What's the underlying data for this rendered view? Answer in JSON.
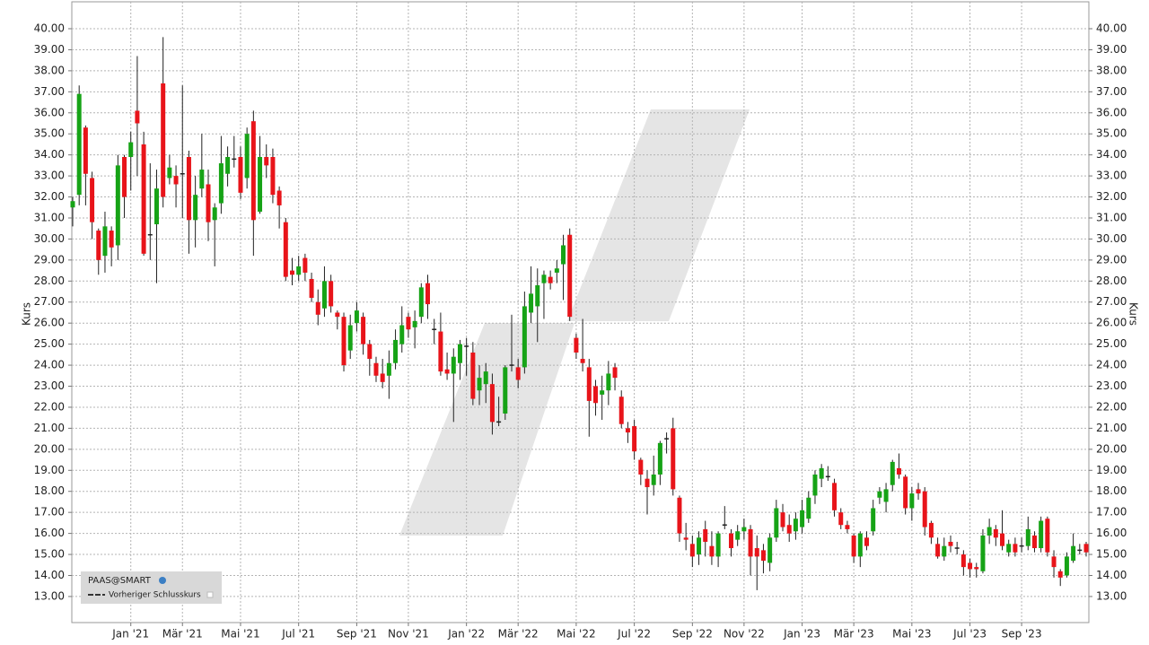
{
  "chart_data": {
    "type": "candlestick",
    "ylabel": "Kurs",
    "grid": true,
    "legend": "lower left",
    "prev_close_label": "Vorheriger Schlusskurs",
    "ylim": [
      11.76,
      41.28
    ],
    "yticks": [
      {
        "value": 13,
        "label": "13.00"
      },
      {
        "value": 14,
        "label": "14.00"
      },
      {
        "value": 15,
        "label": "15.00"
      },
      {
        "value": 16,
        "label": "16.00"
      },
      {
        "value": 17,
        "label": "17.00"
      },
      {
        "value": 18,
        "label": "18.00"
      },
      {
        "value": 19,
        "label": "19.00"
      },
      {
        "value": 20,
        "label": "20.00"
      },
      {
        "value": 21,
        "label": "21.00"
      },
      {
        "value": 22,
        "label": "22.00"
      },
      {
        "value": 23,
        "label": "23.00"
      },
      {
        "value": 24,
        "label": "24.00"
      },
      {
        "value": 25,
        "label": "25.00"
      },
      {
        "value": 26,
        "label": "26.00"
      },
      {
        "value": 27,
        "label": "27.00"
      },
      {
        "value": 28,
        "label": "28.00"
      },
      {
        "value": 29,
        "label": "29.00"
      },
      {
        "value": 30,
        "label": "30.00"
      },
      {
        "value": 31,
        "label": "31.00"
      },
      {
        "value": 32,
        "label": "32.00"
      },
      {
        "value": 33,
        "label": "33.00"
      },
      {
        "value": 34,
        "label": "34.00"
      },
      {
        "value": 35,
        "label": "35.00"
      },
      {
        "value": 36,
        "label": "36.00"
      },
      {
        "value": 37,
        "label": "37.00"
      },
      {
        "value": 38,
        "label": "38.00"
      },
      {
        "value": 39,
        "label": "39.00"
      },
      {
        "value": 40,
        "label": "40.00"
      }
    ],
    "categories": [
      null,
      null,
      null,
      null,
      null,
      null,
      null,
      null,
      null,
      "Jan '21",
      null,
      null,
      null,
      null,
      null,
      null,
      null,
      "Mär '21",
      null,
      null,
      null,
      null,
      null,
      null,
      null,
      null,
      "Mai '21",
      null,
      null,
      null,
      null,
      null,
      null,
      null,
      null,
      "Jul '21",
      null,
      null,
      null,
      null,
      null,
      null,
      null,
      null,
      "Sep '21",
      null,
      null,
      null,
      null,
      null,
      null,
      null,
      "Nov '21",
      null,
      null,
      null,
      null,
      null,
      null,
      null,
      null,
      "Jan '22",
      null,
      null,
      null,
      null,
      null,
      null,
      null,
      "Mär '22",
      null,
      null,
      null,
      null,
      null,
      null,
      null,
      null,
      "Mai '22",
      null,
      null,
      null,
      null,
      null,
      null,
      null,
      null,
      "Jul '22",
      null,
      null,
      null,
      null,
      null,
      null,
      null,
      null,
      "Sep '22",
      null,
      null,
      null,
      null,
      null,
      null,
      null,
      "Nov '22",
      null,
      null,
      null,
      null,
      null,
      null,
      null,
      null,
      "Jan '23",
      null,
      null,
      null,
      null,
      null,
      null,
      null,
      "Mär '23",
      null,
      null,
      null,
      null,
      null,
      null,
      null,
      null,
      "Mai '23",
      null,
      null,
      null,
      null,
      null,
      null,
      null,
      null,
      "Jul '23",
      null,
      null,
      null,
      null,
      null,
      null,
      null,
      "Sep '23",
      null,
      null,
      null,
      null,
      null,
      null,
      null,
      null,
      null,
      null
    ],
    "series": [
      {
        "name": "PAAS@SMART",
        "up_color": "#16a316",
        "down_color": "#e8141a",
        "open": [
          31.5,
          32.1,
          35.3,
          32.9,
          30.4,
          29.2,
          30.4,
          29.7,
          33.9,
          33.9,
          36.1,
          34.5,
          30.2,
          30.7,
          37.4,
          32.9,
          33.0,
          33.1,
          33.9,
          30.9,
          32.4,
          32.6,
          30.9,
          31.7,
          33.1,
          33.8,
          33.9,
          32.9,
          35.6,
          31.3,
          33.9,
          33.9,
          32.3,
          30.8,
          28.5,
          28.3,
          29.1,
          28.1,
          27.0,
          26.7,
          28.0,
          26.5,
          26.3,
          24.7,
          26.0,
          26.3,
          25.0,
          24.1,
          23.6,
          23.5,
          24.1,
          25.0,
          26.3,
          25.8,
          26.3,
          27.9,
          25.7,
          25.6,
          23.8,
          23.6,
          24.1,
          24.9,
          24.6,
          22.8,
          23.1,
          23.1,
          21.3,
          21.7,
          24.0,
          23.9,
          23.9,
          26.5,
          26.8,
          27.9,
          28.2,
          28.4,
          28.8,
          30.2,
          25.3,
          24.3,
          23.9,
          23.0,
          22.6,
          22.8,
          23.9,
          22.5,
          21.0,
          21.1,
          19.5,
          18.6,
          18.3,
          18.8,
          20.5,
          21.0,
          17.7,
          15.8,
          15.5,
          15.0,
          16.2,
          15.4,
          14.9,
          16.4,
          16.0,
          15.7,
          16.1,
          16.2,
          15.3,
          15.2,
          14.6,
          15.8,
          17.0,
          16.4,
          16.1,
          16.3,
          16.7,
          17.8,
          18.6,
          18.7,
          18.4,
          17.0,
          16.4,
          15.9,
          14.9,
          15.8,
          16.1,
          17.7,
          17.5,
          18.3,
          19.1,
          18.7,
          17.2,
          18.1,
          18.0,
          16.5,
          15.5,
          14.9,
          15.6,
          15.3,
          15.0,
          14.6,
          14.4,
          14.2,
          15.9,
          16.2,
          16.0,
          15.1,
          15.5,
          15.4,
          15.4,
          15.9,
          15.3,
          16.7,
          14.9,
          14.2,
          14.0,
          14.7,
          15.2,
          15.5
        ],
        "high": [
          32.0,
          37.3,
          35.4,
          33.2,
          30.5,
          31.3,
          30.6,
          34.0,
          34.0,
          35.1,
          38.7,
          35.1,
          33.6,
          33.3,
          39.6,
          34.0,
          33.5,
          37.3,
          34.2,
          33.0,
          35.0,
          33.3,
          31.7,
          34.9,
          34.4,
          34.9,
          34.4,
          35.3,
          36.1,
          34.9,
          34.5,
          34.3,
          32.5,
          31.0,
          29.1,
          29.2,
          29.3,
          28.4,
          27.6,
          28.7,
          28.3,
          26.6,
          26.5,
          26.4,
          27.0,
          26.5,
          25.2,
          24.4,
          24.3,
          24.7,
          25.7,
          26.8,
          26.5,
          26.6,
          27.9,
          28.3,
          26.2,
          26.5,
          24.6,
          24.8,
          25.2,
          25.3,
          25.1,
          24.0,
          24.1,
          23.6,
          22.5,
          24.0,
          26.4,
          24.3,
          27.5,
          28.7,
          28.6,
          28.5,
          28.5,
          29.0,
          30.2,
          30.5,
          25.5,
          26.2,
          24.3,
          23.3,
          23.5,
          24.2,
          24.1,
          22.8,
          21.3,
          21.4,
          19.6,
          19.0,
          19.7,
          20.4,
          20.8,
          21.5,
          17.8,
          16.5,
          15.9,
          16.1,
          16.6,
          16.1,
          16.1,
          17.3,
          16.2,
          16.4,
          16.7,
          16.4,
          15.9,
          15.5,
          16.0,
          17.6,
          17.4,
          16.9,
          17.0,
          17.6,
          18.0,
          19.0,
          19.3,
          19.2,
          18.6,
          17.2,
          16.6,
          16.0,
          16.1,
          16.1,
          17.6,
          18.2,
          18.4,
          19.5,
          19.8,
          18.8,
          18.2,
          18.4,
          18.2,
          16.6,
          15.8,
          15.8,
          15.9,
          15.6,
          15.2,
          14.8,
          14.6,
          16.2,
          16.7,
          16.4,
          17.1,
          15.7,
          15.8,
          15.8,
          16.8,
          16.1,
          16.8,
          16.8,
          15.2,
          14.3,
          15.1,
          16.0,
          15.5,
          15.6
        ],
        "low": [
          30.6,
          31.6,
          31.6,
          30.0,
          28.3,
          28.4,
          28.7,
          29.0,
          31.0,
          32.3,
          33.0,
          29.2,
          29.0,
          27.9,
          31.5,
          32.6,
          31.5,
          31.0,
          29.3,
          29.6,
          32.0,
          29.9,
          28.7,
          31.2,
          32.5,
          33.4,
          31.9,
          32.4,
          29.2,
          31.2,
          32.9,
          31.7,
          30.5,
          28.0,
          27.8,
          28.0,
          28.0,
          27.0,
          25.9,
          26.3,
          26.5,
          25.7,
          23.7,
          24.3,
          25.6,
          24.5,
          23.5,
          23.2,
          22.9,
          22.4,
          23.8,
          24.6,
          25.3,
          24.8,
          26.0,
          26.2,
          25.0,
          23.5,
          23.3,
          21.3,
          23.3,
          23.5,
          22.1,
          22.1,
          22.2,
          20.7,
          21.1,
          21.4,
          23.7,
          22.9,
          23.6,
          26.0,
          25.1,
          26.2,
          27.6,
          27.9,
          27.1,
          26.1,
          24.3,
          23.7,
          20.6,
          21.6,
          21.4,
          22.1,
          22.8,
          21.0,
          20.3,
          19.5,
          18.3,
          16.9,
          17.8,
          18.3,
          19.8,
          17.8,
          15.6,
          15.2,
          14.4,
          14.5,
          14.9,
          14.5,
          14.4,
          16.2,
          14.9,
          15.4,
          15.7,
          14.0,
          13.3,
          14.1,
          14.2,
          15.6,
          16.1,
          15.6,
          15.7,
          16.0,
          16.5,
          17.4,
          18.2,
          18.5,
          16.8,
          16.2,
          16.0,
          14.6,
          14.4,
          15.2,
          15.9,
          17.4,
          17.0,
          18.0,
          18.6,
          16.9,
          16.6,
          17.6,
          15.9,
          15.5,
          14.8,
          14.7,
          15.1,
          15.0,
          14.0,
          13.9,
          13.9,
          14.1,
          15.5,
          15.4,
          15.2,
          14.9,
          14.9,
          15.1,
          15.2,
          15.1,
          15.1,
          14.9,
          13.9,
          13.5,
          13.9,
          14.6,
          15.0,
          14.9
        ],
        "close": [
          31.8,
          36.9,
          33.1,
          30.8,
          29.0,
          30.6,
          29.6,
          33.5,
          32.0,
          34.6,
          35.5,
          29.3,
          30.2,
          32.4,
          32.0,
          33.4,
          32.6,
          33.1,
          30.9,
          32.1,
          33.3,
          30.8,
          31.5,
          33.6,
          33.9,
          33.8,
          32.2,
          35.0,
          30.9,
          33.9,
          33.5,
          32.1,
          31.6,
          28.2,
          28.3,
          28.7,
          28.4,
          27.2,
          26.4,
          28.0,
          26.8,
          26.3,
          24.0,
          25.9,
          26.6,
          25.0,
          24.3,
          23.5,
          23.2,
          24.1,
          25.2,
          25.9,
          25.7,
          26.1,
          27.7,
          26.9,
          25.7,
          23.7,
          23.6,
          24.4,
          25.0,
          24.9,
          22.4,
          23.4,
          23.7,
          21.3,
          21.3,
          23.9,
          24.0,
          23.3,
          26.8,
          27.4,
          27.8,
          28.3,
          27.9,
          28.6,
          29.7,
          26.3,
          24.6,
          24.1,
          22.3,
          22.2,
          22.8,
          23.6,
          23.4,
          21.2,
          20.8,
          19.9,
          18.8,
          18.2,
          18.8,
          20.3,
          20.5,
          18.1,
          16.0,
          15.7,
          14.9,
          15.8,
          15.6,
          14.9,
          16.0,
          16.4,
          15.3,
          16.1,
          16.3,
          14.9,
          14.9,
          14.7,
          15.8,
          17.2,
          16.3,
          16.0,
          16.7,
          17.1,
          17.7,
          18.8,
          19.1,
          18.7,
          17.1,
          16.4,
          16.2,
          14.9,
          16.0,
          15.4,
          17.2,
          18.0,
          18.1,
          19.4,
          18.8,
          17.2,
          17.9,
          17.9,
          16.3,
          15.8,
          14.9,
          15.4,
          15.4,
          15.3,
          14.4,
          14.3,
          14.3,
          15.9,
          16.3,
          15.8,
          15.4,
          15.5,
          15.1,
          15.4,
          16.2,
          15.3,
          16.6,
          15.1,
          14.4,
          13.9,
          14.9,
          15.4,
          15.2,
          15.1
        ]
      }
    ]
  }
}
